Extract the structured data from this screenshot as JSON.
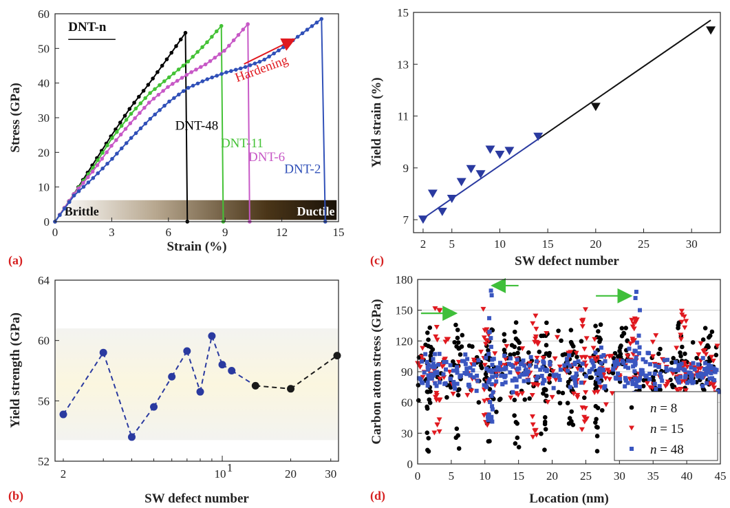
{
  "chart_data": [
    {
      "panel": "(a)",
      "type": "line",
      "title": "DNT-n",
      "xlabel": "Strain (%)",
      "ylabel": "Stress (GPa)",
      "xlim": [
        0,
        15
      ],
      "ylim": [
        0,
        60
      ],
      "xticks": [
        0,
        3,
        6,
        9,
        12,
        15
      ],
      "yticks": [
        0,
        10,
        20,
        30,
        40,
        50,
        60
      ],
      "grid": false,
      "legend": "inline labels",
      "annotations": {
        "hardening": "Hardening",
        "brittle": "Brittle",
        "ductile": "Ductile"
      },
      "series": [
        {
          "name": "DNT-48",
          "color": "#000000",
          "x": [
            0,
            1,
            2,
            3,
            4,
            5,
            6,
            6.9
          ],
          "y": [
            0,
            8,
            16.5,
            25,
            33,
            40,
            47.5,
            54.5
          ],
          "fracture_strain": 7.0
        },
        {
          "name": "DNT-11",
          "color": "#44c236",
          "x": [
            0,
            1,
            2,
            3,
            4,
            5,
            6,
            7,
            8,
            8.8
          ],
          "y": [
            0,
            8,
            15.5,
            24,
            31,
            37,
            41.5,
            46,
            51.5,
            56.5
          ],
          "fracture_strain": 8.9
        },
        {
          "name": "DNT-6",
          "color": "#c758c6",
          "x": [
            0,
            1,
            2,
            3,
            4,
            5,
            6,
            7,
            8,
            9,
            10.2
          ],
          "y": [
            0,
            8,
            14.5,
            22,
            28.5,
            34.5,
            39,
            42.5,
            45.5,
            49.5,
            57
          ],
          "fracture_strain": 10.3
        },
        {
          "name": "DNT-2",
          "color": "#3050b8",
          "x": [
            0,
            1,
            2,
            3,
            4,
            5,
            6,
            7,
            8,
            9,
            10,
            11,
            12,
            13,
            14.1
          ],
          "y": [
            0,
            7.5,
            12.5,
            18,
            24,
            29.5,
            34.5,
            38.5,
            41,
            43,
            44.5,
            46.5,
            50,
            54,
            58.5
          ],
          "fracture_strain": 14.3
        }
      ]
    },
    {
      "panel": "(b)",
      "type": "line",
      "xlabel": "SW defect number",
      "ylabel": "Yield strength (GPa)",
      "xscale": "log",
      "xlim": [
        2,
        32
      ],
      "ylim": [
        52,
        64
      ],
      "xtick_labels": [
        "2",
        "10",
        "1",
        "20",
        "30"
      ],
      "yticks": [
        52,
        56,
        60,
        64
      ],
      "shaded_band": [
        53.4,
        60.8
      ],
      "series": [
        {
          "name": "",
          "color": "#2a3aa0",
          "x": [
            2,
            3,
            4,
            5,
            6,
            7,
            8,
            9,
            10,
            11,
            14,
            20,
            32
          ],
          "y": [
            55.1,
            59.2,
            53.6,
            55.6,
            57.6,
            59.3,
            56.6,
            60.3,
            58.4,
            58,
            57,
            56.8,
            59
          ],
          "color_end": "#1a1a1a"
        }
      ]
    },
    {
      "panel": "(c)",
      "type": "scatter",
      "xlabel": "SW defect number",
      "ylabel": "Yield strain (%)",
      "xlim": [
        1,
        33
      ],
      "ylim": [
        6.5,
        15
      ],
      "xticks": [
        2,
        5,
        10,
        15,
        20,
        25,
        30
      ],
      "yticks": [
        7,
        9,
        11,
        13,
        15
      ],
      "fit_line": {
        "x": [
          2,
          32
        ],
        "y": [
          7.05,
          14.7
        ]
      },
      "series": [
        {
          "name": "",
          "color": "#2a3aa0",
          "x": [
            2,
            3,
            4,
            5,
            6,
            7,
            8,
            9,
            10,
            11,
            14,
            20,
            32
          ],
          "y": [
            7.0,
            8.0,
            7.3,
            7.8,
            8.45,
            8.95,
            8.75,
            9.7,
            9.5,
            9.65,
            10.2,
            11.35,
            14.3
          ]
        }
      ]
    },
    {
      "panel": "(d)",
      "type": "scatter",
      "xlabel": "Location (nm)",
      "ylabel": "Carbon atom stress (GPa)",
      "xlim": [
        0,
        45
      ],
      "ylim": [
        0,
        180
      ],
      "xticks": [
        0,
        5,
        10,
        15,
        20,
        25,
        30,
        35,
        40,
        45
      ],
      "yticks": [
        0,
        30,
        60,
        90,
        120,
        150,
        180
      ],
      "grid": true,
      "legend": "bottom-right",
      "series": [
        {
          "name": "n = 8",
          "legend_italic": "n",
          "legend_rest": " = 8",
          "color": "#000000",
          "marker": "circle",
          "peaks": [
            1.8,
            5.8,
            10.7,
            14.7,
            18.8,
            22.7,
            26.8,
            30.8,
            38.9,
            42.9
          ]
        },
        {
          "name": "n = 15",
          "legend_italic": "n",
          "legend_rest": " = 15",
          "color": "#e0191f",
          "marker": "triangle",
          "peaks": [
            2.9,
            10.2,
            17.5,
            24.8,
            32.2,
            39.5
          ]
        },
        {
          "name": "n = 48",
          "legend_italic": "n",
          "legend_rest": " = 48",
          "color": "#3a56c0",
          "marker": "square",
          "peaks": [
            10.8,
            32.6
          ]
        }
      ],
      "arrows": [
        {
          "from": [
            0.5,
            147
          ],
          "to": [
            5.5,
            147
          ]
        },
        {
          "from": [
            15,
            174
          ],
          "to": [
            11.3,
            174
          ]
        },
        {
          "from": [
            26.5,
            164
          ],
          "to": [
            31.5,
            164
          ]
        }
      ]
    }
  ]
}
